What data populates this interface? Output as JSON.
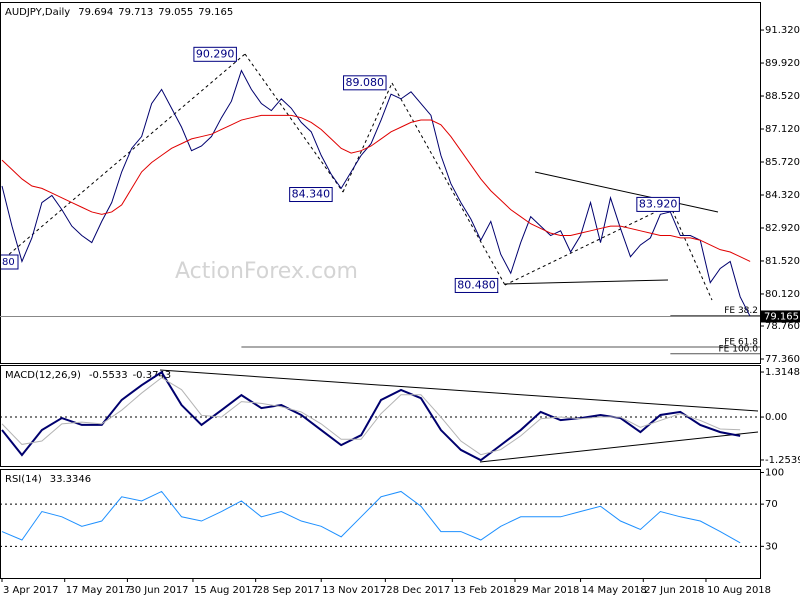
{
  "chart_data": [
    {
      "type": "line",
      "title": "AUDJPY,Daily",
      "quote": [
        79.694,
        79.713,
        79.055,
        79.165
      ],
      "x": [
        "2017-04-03",
        "2017-04-10",
        "2017-04-17",
        "2017-04-24",
        "2017-05-01",
        "2017-05-08",
        "2017-05-15",
        "2017-05-22",
        "2017-05-29",
        "2017-06-05",
        "2017-06-12",
        "2017-06-19",
        "2017-06-26",
        "2017-07-03",
        "2017-07-10",
        "2017-07-17",
        "2017-07-24",
        "2017-07-31",
        "2017-08-07",
        "2017-08-14",
        "2017-08-21",
        "2017-08-28",
        "2017-09-04",
        "2017-09-11",
        "2017-09-18",
        "2017-09-25",
        "2017-10-02",
        "2017-10-09",
        "2017-10-16",
        "2017-10-23",
        "2017-10-30",
        "2017-11-06",
        "2017-11-13",
        "2017-11-20",
        "2017-11-27",
        "2017-12-04",
        "2017-12-11",
        "2017-12-18",
        "2017-12-25",
        "2018-01-01",
        "2018-01-08",
        "2018-01-15",
        "2018-01-22",
        "2018-01-29",
        "2018-02-05",
        "2018-02-12",
        "2018-02-19",
        "2018-02-26",
        "2018-03-05",
        "2018-03-12",
        "2018-03-19",
        "2018-03-26",
        "2018-04-02",
        "2018-04-09",
        "2018-04-16",
        "2018-04-23",
        "2018-04-30",
        "2018-05-07",
        "2018-05-14",
        "2018-05-21",
        "2018-05-28",
        "2018-06-04",
        "2018-06-11",
        "2018-06-18",
        "2018-06-25",
        "2018-07-02",
        "2018-07-09",
        "2018-07-16",
        "2018-07-23",
        "2018-07-30",
        "2018-08-06",
        "2018-08-13",
        "2018-08-20",
        "2018-08-27",
        "2018-09-03",
        "2018-09-10"
      ],
      "series": [
        {
          "color": "#00006e",
          "values": [
            84.7,
            83.0,
            81.5,
            82.5,
            84.0,
            84.3,
            83.7,
            83.0,
            82.6,
            82.3,
            83.2,
            84.0,
            85.3,
            86.3,
            86.8,
            88.2,
            88.8,
            88.0,
            87.2,
            86.2,
            86.4,
            86.8,
            87.6,
            88.3,
            89.6,
            88.8,
            88.2,
            87.9,
            88.4,
            88.0,
            87.4,
            87.0,
            86.0,
            85.2,
            84.6,
            85.3,
            86.0,
            86.5,
            87.5,
            88.6,
            88.4,
            88.7,
            88.2,
            87.7,
            86.0,
            84.8,
            84.0,
            83.3,
            82.4,
            83.2,
            81.8,
            81.0,
            82.3,
            83.4,
            83.0,
            82.6,
            82.8,
            81.9,
            82.6,
            84.0,
            82.3,
            84.2,
            82.9,
            81.7,
            82.2,
            82.5,
            83.5,
            83.6,
            82.6,
            82.6,
            82.4,
            80.6,
            81.2,
            81.5,
            80.0,
            79.165
          ]
        },
        {
          "color": "#e00000",
          "values": [
            85.8,
            85.4,
            85.0,
            84.7,
            84.6,
            84.4,
            84.2,
            84.0,
            83.8,
            83.6,
            83.5,
            83.6,
            83.9,
            84.6,
            85.3,
            85.7,
            86.0,
            86.3,
            86.5,
            86.7,
            86.8,
            86.9,
            87.1,
            87.3,
            87.5,
            87.6,
            87.7,
            87.7,
            87.7,
            87.7,
            87.6,
            87.4,
            87.1,
            86.7,
            86.3,
            86.1,
            86.2,
            86.4,
            86.7,
            87.0,
            87.2,
            87.4,
            87.5,
            87.5,
            87.3,
            86.8,
            86.2,
            85.6,
            85.0,
            84.5,
            84.1,
            83.7,
            83.4,
            83.1,
            82.9,
            82.7,
            82.6,
            82.6,
            82.7,
            82.8,
            82.9,
            83.0,
            83.0,
            82.9,
            82.8,
            82.7,
            82.6,
            82.6,
            82.5,
            82.5,
            82.4,
            82.2,
            82.0,
            81.9,
            81.7,
            81.5
          ]
        }
      ],
      "xlim": [
        "2017-04-03",
        "2018-09-12"
      ],
      "ylim": [
        77.19,
        92.51
      ],
      "yticks": [
        {
          "value": 91.32,
          "label": "91.320"
        },
        {
          "value": 89.92,
          "label": "89.920"
        },
        {
          "value": 88.52,
          "label": "88.520"
        },
        {
          "value": 87.12,
          "label": "87.120"
        },
        {
          "value": 85.72,
          "label": "85.720"
        },
        {
          "value": 84.32,
          "label": "84.320"
        },
        {
          "value": 82.92,
          "label": "82.920"
        },
        {
          "value": 81.52,
          "label": "81.520"
        },
        {
          "value": 80.12,
          "label": "80.120"
        },
        {
          "value": 78.76,
          "label": "78.760"
        },
        {
          "value": 77.36,
          "label": "77.360"
        }
      ],
      "annotations": [
        {
          "label": "90.290",
          "value": 90.29,
          "x": "2017-09-18"
        },
        {
          "label": "89.080",
          "value": 89.08,
          "x": "2018-01-01"
        },
        {
          "label": "84.340",
          "value": 84.34,
          "x": "2017-11-27"
        },
        {
          "label": "83.920",
          "value": 83.92,
          "x": "2018-07-16"
        },
        {
          "label": "80.480",
          "value": 80.48,
          "x": "2018-03-26"
        }
      ],
      "levels": [
        {
          "label": "FE 38.2",
          "value": 79.2,
          "from": "2018-07-16"
        },
        {
          "label": "FE 61.8",
          "value": 77.87,
          "from": "2017-09-18"
        },
        {
          "label": "FE 100.0",
          "value": 77.58,
          "from": "2018-07-16"
        }
      ],
      "edge_label": "80",
      "watermark": "ActionForex.com"
    },
    {
      "type": "line",
      "title": "MACD(12,26,9)",
      "quote": [
        -0.5533,
        -0.3743
      ],
      "x": [
        "2017-04-03",
        "2017-04-17",
        "2017-05-01",
        "2017-05-15",
        "2017-05-29",
        "2017-06-12",
        "2017-06-26",
        "2017-07-10",
        "2017-07-24",
        "2017-08-07",
        "2017-08-21",
        "2017-09-04",
        "2017-09-18",
        "2017-10-02",
        "2017-10-16",
        "2017-10-30",
        "2017-11-13",
        "2017-11-27",
        "2017-12-11",
        "2017-12-25",
        "2018-01-08",
        "2018-01-22",
        "2018-02-05",
        "2018-02-19",
        "2018-03-05",
        "2018-03-19",
        "2018-04-02",
        "2018-04-16",
        "2018-04-30",
        "2018-05-14",
        "2018-05-28",
        "2018-06-11",
        "2018-06-25",
        "2018-07-09",
        "2018-07-23",
        "2018-08-06",
        "2018-08-20",
        "2018-09-03"
      ],
      "series": [
        {
          "color": "#00006e",
          "values": [
            -0.38,
            -1.11,
            -0.38,
            -0.03,
            -0.23,
            -0.23,
            0.5,
            0.93,
            1.31,
            0.35,
            -0.23,
            0.2,
            0.64,
            0.26,
            0.35,
            0.06,
            -0.38,
            -0.82,
            -0.53,
            0.5,
            0.79,
            0.55,
            -0.38,
            -0.96,
            -1.26,
            -0.82,
            -0.38,
            0.15,
            -0.09,
            -0.03,
            0.06,
            -0.03,
            -0.44,
            0.06,
            0.15,
            -0.23,
            -0.44,
            -0.55
          ]
        },
        {
          "color": "#b4b4b4",
          "values": [
            -0.2,
            -0.8,
            -0.7,
            -0.2,
            -0.15,
            -0.2,
            0.2,
            0.7,
            1.15,
            0.8,
            0.05,
            0.0,
            0.45,
            0.4,
            0.3,
            0.15,
            -0.2,
            -0.65,
            -0.65,
            0.1,
            0.65,
            0.65,
            0.0,
            -0.7,
            -1.1,
            -0.95,
            -0.55,
            -0.05,
            0.0,
            -0.05,
            0.0,
            0.0,
            -0.3,
            -0.1,
            0.1,
            -0.1,
            -0.35,
            -0.37
          ]
        }
      ],
      "xlim": [
        "2017-04-03",
        "2018-09-12"
      ],
      "ylim": [
        -1.43,
        1.52
      ],
      "yticks": [
        1.3148,
        {
          "value": 0,
          "label": "0.00"
        },
        -1.2539
      ],
      "reference_lines": [
        0
      ]
    },
    {
      "type": "line",
      "title": "RSI(14)",
      "quote": [
        33.3346
      ],
      "x": [
        "2017-04-03",
        "2017-04-17",
        "2017-05-01",
        "2017-05-15",
        "2017-05-29",
        "2017-06-12",
        "2017-06-26",
        "2017-07-10",
        "2017-07-24",
        "2017-08-07",
        "2017-08-21",
        "2017-09-04",
        "2017-09-18",
        "2017-10-02",
        "2017-10-16",
        "2017-10-30",
        "2017-11-13",
        "2017-11-27",
        "2017-12-11",
        "2017-12-25",
        "2018-01-08",
        "2018-01-22",
        "2018-02-05",
        "2018-02-19",
        "2018-03-05",
        "2018-03-19",
        "2018-04-02",
        "2018-04-16",
        "2018-04-30",
        "2018-05-14",
        "2018-05-28",
        "2018-06-11",
        "2018-06-25",
        "2018-07-09",
        "2018-07-23",
        "2018-08-06",
        "2018-08-20",
        "2018-09-03"
      ],
      "series": [
        {
          "color": "#1e90ff",
          "values": [
            44,
            36,
            63,
            58,
            49,
            54,
            77,
            73,
            82,
            58,
            54,
            63,
            73,
            58,
            63,
            54,
            49,
            39,
            58,
            77,
            82,
            68,
            44,
            44,
            36,
            49,
            58,
            58,
            58,
            63,
            68,
            54,
            46,
            63,
            58,
            54,
            44,
            33.3
          ]
        }
      ],
      "xlim": [
        "2017-04-03",
        "2018-09-12"
      ],
      "ylim": [
        0,
        103.3
      ],
      "yticks": [
        100,
        70,
        30
      ],
      "reference_lines": [
        70,
        30
      ],
      "xticks": [
        {
          "value": "2017-04-03",
          "label": "3 Apr 2017"
        },
        {
          "value": "2017-05-17",
          "label": "17 May 2017"
        },
        {
          "value": "2017-06-30",
          "label": "30 Jun 2017"
        },
        {
          "value": "2017-08-15",
          "label": "15 Aug 2017"
        },
        {
          "value": "2017-09-28",
          "label": "28 Sep 2017"
        },
        {
          "value": "2017-11-13",
          "label": "13 Nov 2017"
        },
        {
          "value": "2017-12-28",
          "label": "28 Dec 2017"
        },
        {
          "value": "2018-02-13",
          "label": "13 Feb 2018"
        },
        {
          "value": "2018-03-29",
          "label": "29 Mar 2018"
        },
        {
          "value": "2018-05-14",
          "label": "14 May 2018"
        },
        {
          "value": "2018-06-27",
          "label": "27 Jun 2018"
        },
        {
          "value": "2018-08-10",
          "label": "10 Aug 2018"
        }
      ]
    }
  ]
}
